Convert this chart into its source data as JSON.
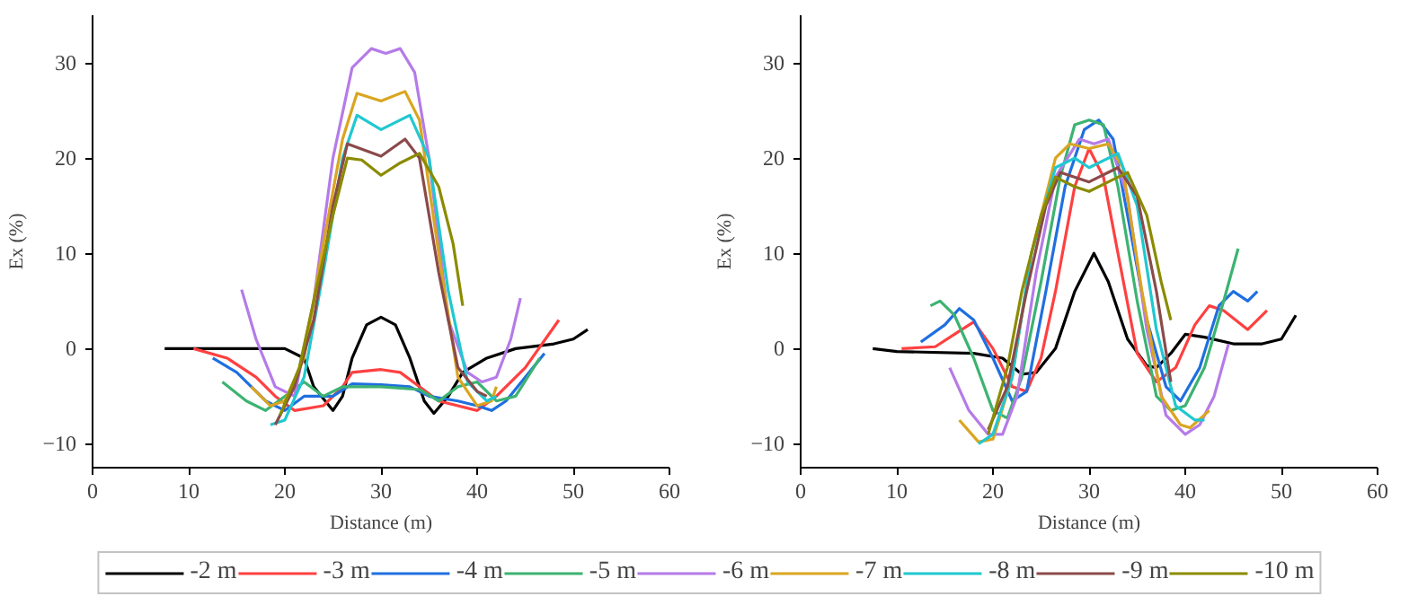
{
  "chart_data": [
    {
      "type": "line",
      "xlabel": "Distance (m)",
      "ylabel": "Ex (%)",
      "xlim": [
        0,
        60
      ],
      "ylim": [
        -12.5,
        35
      ],
      "xticks": [
        0,
        10,
        20,
        30,
        40,
        50,
        60
      ],
      "yticks": [
        -10,
        0,
        10,
        20,
        30
      ],
      "grid": false,
      "legend": "bottom",
      "series": [
        {
          "name": "-2 m",
          "color": "#000000",
          "x": [
            7.5,
            20,
            22,
            23,
            25,
            26,
            27,
            28.5,
            30,
            31.5,
            33,
            34.5,
            35.5,
            37,
            38.5,
            41,
            44,
            48,
            50,
            51.5
          ],
          "values": [
            0,
            0,
            -1,
            -4,
            -6.5,
            -5,
            -1,
            2.5,
            3.3,
            2.5,
            -1,
            -5.5,
            -6.8,
            -5,
            -2.5,
            -1,
            0,
            0.5,
            1,
            2
          ]
        },
        {
          "name": "-3 m",
          "color": "#ff4040",
          "x": [
            10.5,
            14,
            17,
            19,
            21,
            24,
            26,
            27,
            30,
            32,
            34,
            36,
            40,
            42,
            45,
            48.5
          ],
          "values": [
            0,
            -1,
            -3,
            -5,
            -6.5,
            -6,
            -4,
            -2.5,
            -2.2,
            -2.5,
            -4,
            -5.5,
            -6.5,
            -5,
            -2,
            3
          ]
        },
        {
          "name": "-4 m",
          "color": "#1f6fe0",
          "x": [
            12.5,
            15,
            18,
            20,
            22,
            25,
            27,
            30,
            33,
            35,
            38,
            40,
            41.5,
            43,
            45,
            47
          ],
          "values": [
            -1,
            -2.5,
            -5.5,
            -6.5,
            -5,
            -5,
            -3.7,
            -3.8,
            -4,
            -5,
            -5.5,
            -6,
            -6.5,
            -5.5,
            -3,
            -0.5
          ]
        },
        {
          "name": "-5 m",
          "color": "#3cb371",
          "x": [
            13.5,
            16,
            18,
            20,
            22,
            24,
            26,
            30,
            34,
            36,
            38,
            40,
            42,
            44,
            46.5
          ],
          "values": [
            -3.5,
            -5.5,
            -6.5,
            -5,
            -3.5,
            -5,
            -4,
            -4,
            -4.3,
            -5.5,
            -4,
            -3.5,
            -5.5,
            -5,
            -1
          ]
        },
        {
          "name": "-6 m",
          "color": "#b57be8",
          "x": [
            15.5,
            17,
            19,
            21,
            23,
            25,
            27,
            29,
            30.5,
            32,
            33.5,
            35,
            37,
            39,
            40.5,
            42,
            43.5,
            44.5
          ],
          "values": [
            6.2,
            1,
            -4,
            -5,
            5,
            20,
            29.5,
            31.5,
            31,
            31.5,
            29,
            20,
            3,
            -2.5,
            -3.5,
            -3,
            1,
            5.3
          ]
        },
        {
          "name": "-7 m",
          "color": "#daa520",
          "x": [
            16.5,
            18.5,
            20,
            22,
            24,
            26,
            27.5,
            30,
            32.5,
            34,
            36,
            38,
            40,
            41.5,
            42
          ],
          "values": [
            -4,
            -6,
            -5.5,
            -1,
            11,
            22,
            26.8,
            26,
            27,
            24,
            10,
            -3,
            -6,
            -5.5,
            -4
          ]
        },
        {
          "name": "-8 m",
          "color": "#20c8d0",
          "x": [
            18.5,
            20,
            22,
            24,
            26,
            27.5,
            30,
            33,
            35,
            37,
            39,
            41,
            42
          ],
          "values": [
            -8,
            -7.5,
            -3,
            8,
            20,
            24.5,
            23,
            24.5,
            20,
            6,
            -3.5,
            -5.5,
            -5
          ]
        },
        {
          "name": "-9 m",
          "color": "#8b4a4a",
          "x": [
            19,
            21,
            23,
            25,
            26.5,
            30,
            32.5,
            34,
            36,
            38,
            40,
            41
          ],
          "values": [
            -8,
            -4,
            3,
            15,
            21.5,
            20.2,
            22,
            20,
            8,
            -2,
            -4.5,
            -5
          ]
        },
        {
          "name": "-10 m",
          "color": "#8b8b00",
          "x": [
            19.5,
            21.5,
            23,
            25,
            26.5,
            28,
            30,
            32,
            34,
            36,
            37.5,
            38.5
          ],
          "values": [
            -7,
            -2,
            5,
            14,
            20,
            19.8,
            18.2,
            19.5,
            20.5,
            17,
            11,
            4.5
          ]
        }
      ]
    },
    {
      "type": "line",
      "xlabel": "Distance (m)",
      "ylabel": "Ex (%)",
      "xlim": [
        0,
        60
      ],
      "ylim": [
        -12.5,
        35
      ],
      "xticks": [
        0,
        10,
        20,
        30,
        40,
        50,
        60
      ],
      "yticks": [
        -10,
        0,
        10,
        20,
        30
      ],
      "grid": false,
      "series": [
        {
          "color": "#000000",
          "x": [
            7.5,
            10,
            18,
            21,
            23,
            24.5,
            26.5,
            28.5,
            30.5,
            32,
            34,
            36,
            37,
            38.5,
            40,
            42,
            45,
            48,
            50,
            51.5
          ],
          "values": [
            0,
            -0.3,
            -0.5,
            -1,
            -2.7,
            -2.5,
            0,
            6,
            10,
            7,
            1,
            -1.8,
            -2,
            -0.5,
            1.5,
            1.2,
            0.5,
            0.5,
            1,
            3.5
          ]
        },
        {
          "color": "#ff4040",
          "x": [
            10.5,
            14,
            16,
            18,
            20,
            22,
            23.5,
            25,
            26.5,
            28.5,
            30,
            31.5,
            33,
            35,
            37,
            39,
            41,
            42.5,
            44,
            46.5,
            48.5
          ],
          "values": [
            0,
            0.2,
            1.5,
            2.8,
            0,
            -4,
            -4.5,
            -1,
            6,
            17,
            21,
            18,
            10,
            -0.5,
            -3.5,
            -2,
            2.5,
            4.5,
            4,
            2,
            4
          ]
        },
        {
          "color": "#1f6fe0",
          "x": [
            12.5,
            15,
            16.5,
            18,
            20,
            22,
            23.5,
            25.5,
            27.5,
            29.5,
            31,
            32.5,
            34,
            36,
            38,
            39.5,
            41.5,
            43.5,
            45,
            46.5,
            47.5
          ],
          "values": [
            0.7,
            2.5,
            4.2,
            3,
            -1,
            -5.5,
            -4.5,
            6,
            17,
            23,
            24,
            22,
            14,
            3,
            -4,
            -5.5,
            -2,
            4.5,
            6,
            5,
            6
          ]
        },
        {
          "color": "#3cb371",
          "x": [
            13.5,
            14.5,
            16,
            18,
            20,
            21.5,
            23,
            25,
            27,
            28.5,
            30,
            31.5,
            33,
            35,
            37,
            38.5,
            40,
            42,
            44,
            45.5
          ],
          "values": [
            4.5,
            5,
            3.5,
            -1,
            -6.5,
            -7.3,
            -3,
            7,
            18,
            23.5,
            24,
            23.5,
            17,
            5,
            -5,
            -6.5,
            -6,
            -2,
            5,
            10.5
          ]
        },
        {
          "color": "#b57be8",
          "x": [
            15.5,
            17.5,
            19.5,
            21,
            22.5,
            24.5,
            26.5,
            29,
            30.5,
            32,
            34,
            36,
            38,
            40,
            41.5,
            43,
            44.5
          ],
          "values": [
            -2,
            -6.5,
            -9,
            -9,
            -5,
            8,
            18,
            22,
            21.5,
            22,
            16,
            2,
            -7,
            -9,
            -8,
            -5,
            0.5
          ]
        },
        {
          "color": "#daa520",
          "x": [
            16.5,
            18.5,
            20,
            22,
            24,
            26.5,
            28,
            30,
            32,
            33.5,
            35.5,
            37.5,
            39.5,
            40.5,
            42.5
          ],
          "values": [
            -7.5,
            -9.8,
            -9.5,
            -3,
            10,
            20,
            21.5,
            21,
            21.5,
            19,
            6,
            -5,
            -8,
            -8.3,
            -6.5
          ]
        },
        {
          "color": "#20c8d0",
          "x": [
            18.5,
            20,
            22,
            24,
            26.5,
            28.5,
            30,
            33,
            35,
            37,
            39,
            41,
            42
          ],
          "values": [
            -10,
            -9,
            -3,
            10,
            19,
            20,
            19,
            20.5,
            15,
            2,
            -6,
            -7.5,
            -7.5
          ]
        },
        {
          "color": "#8b4a4a",
          "x": [
            19.5,
            21.5,
            23.5,
            25.5,
            27,
            30,
            33,
            35,
            37,
            38.5
          ],
          "values": [
            -8.5,
            -4,
            6,
            15,
            18.5,
            17.5,
            19,
            16,
            6,
            -3.5
          ]
        },
        {
          "color": "#8b8b00",
          "x": [
            19.5,
            21.5,
            23,
            25,
            26.5,
            28.5,
            30,
            32,
            34,
            36,
            37.5,
            38.5
          ],
          "values": [
            -9,
            -2,
            6,
            14,
            18,
            17,
            16.5,
            17.5,
            18.5,
            14,
            7,
            3
          ]
        }
      ]
    }
  ]
}
